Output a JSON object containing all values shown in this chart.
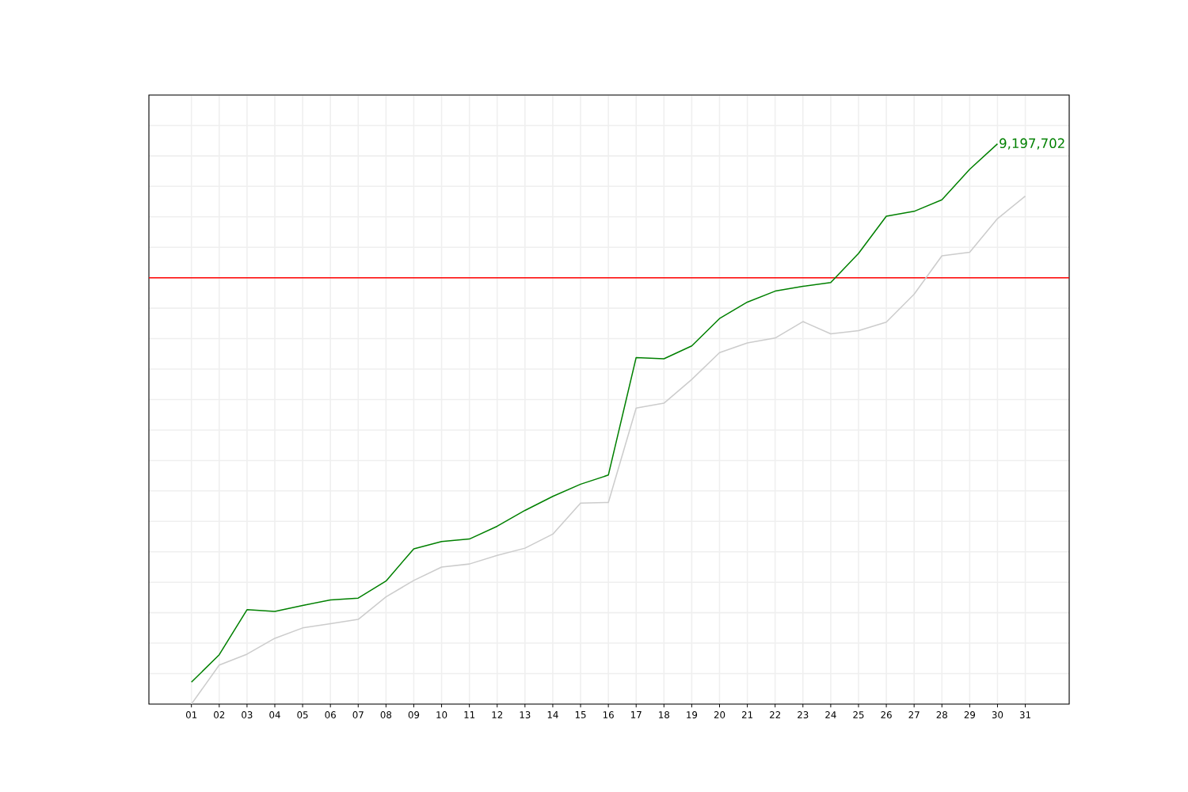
{
  "chart_data": {
    "type": "line",
    "categories": [
      "01",
      "02",
      "03",
      "04",
      "05",
      "06",
      "07",
      "08",
      "09",
      "10",
      "11",
      "12",
      "13",
      "14",
      "15",
      "16",
      "17",
      "18",
      "19",
      "20",
      "21",
      "22",
      "23",
      "24",
      "25",
      "26",
      "27",
      "28",
      "29",
      "30",
      "31"
    ],
    "series": [
      {
        "color": "#008000",
        "values": [
          360000,
          810000,
          1550000,
          1520000,
          1620000,
          1710000,
          1740000,
          2020000,
          2550000,
          2670000,
          2710000,
          2920000,
          3180000,
          3410000,
          3610000,
          3760000,
          5690000,
          5670000,
          5880000,
          6330000,
          6600000,
          6780000,
          6860000,
          6920000,
          7400000,
          8010000,
          8090000,
          8280000,
          8780000,
          9197702,
          null
        ],
        "value_labels": [
          null,
          null,
          null,
          null,
          null,
          null,
          null,
          null,
          null,
          null,
          null,
          null,
          null,
          null,
          null,
          null,
          null,
          null,
          null,
          null,
          null,
          null,
          null,
          null,
          null,
          null,
          null,
          null,
          null,
          "9,197,702",
          null
        ]
      },
      {
        "color": "#cccccc",
        "values": [
          0,
          640000,
          820000,
          1080000,
          1250000,
          1320000,
          1390000,
          1760000,
          2030000,
          2250000,
          2300000,
          2440000,
          2560000,
          2790000,
          3300000,
          3310000,
          4860000,
          4940000,
          5330000,
          5770000,
          5930000,
          6010000,
          6280000,
          6080000,
          6130000,
          6270000,
          6730000,
          7360000,
          7420000,
          7970000,
          8340000
        ]
      }
    ],
    "ylim": [
      0,
      10000000
    ],
    "yticks": [
      {
        "value": 0,
        "label": null
      },
      {
        "value": 500000,
        "label": null
      },
      {
        "value": 1000000,
        "label": null
      },
      {
        "value": 1500000,
        "label": null
      },
      {
        "value": 2000000,
        "label": null
      },
      {
        "value": 2500000,
        "label": null
      },
      {
        "value": 3000000,
        "label": null
      },
      {
        "value": 3500000,
        "label": null
      },
      {
        "value": 4000000,
        "label": null
      },
      {
        "value": 4500000,
        "label": null
      },
      {
        "value": 5000000,
        "label": null
      },
      {
        "value": 5500000,
        "label": null
      },
      {
        "value": 6000000,
        "label": null
      },
      {
        "value": 6500000,
        "label": null
      },
      {
        "value": 7000000,
        "label": null
      },
      {
        "value": 7500000,
        "label": null
      },
      {
        "value": 8000000,
        "label": null
      },
      {
        "value": 8500000,
        "label": null
      },
      {
        "value": 9000000,
        "label": null
      },
      {
        "value": 9500000,
        "label": null
      },
      {
        "value": 10000000,
        "label": null
      }
    ],
    "tick_labels": "x",
    "grid": true,
    "ref_lines": [
      {
        "axis": "y",
        "value": 7000000,
        "color": "#ff0000"
      }
    ]
  }
}
